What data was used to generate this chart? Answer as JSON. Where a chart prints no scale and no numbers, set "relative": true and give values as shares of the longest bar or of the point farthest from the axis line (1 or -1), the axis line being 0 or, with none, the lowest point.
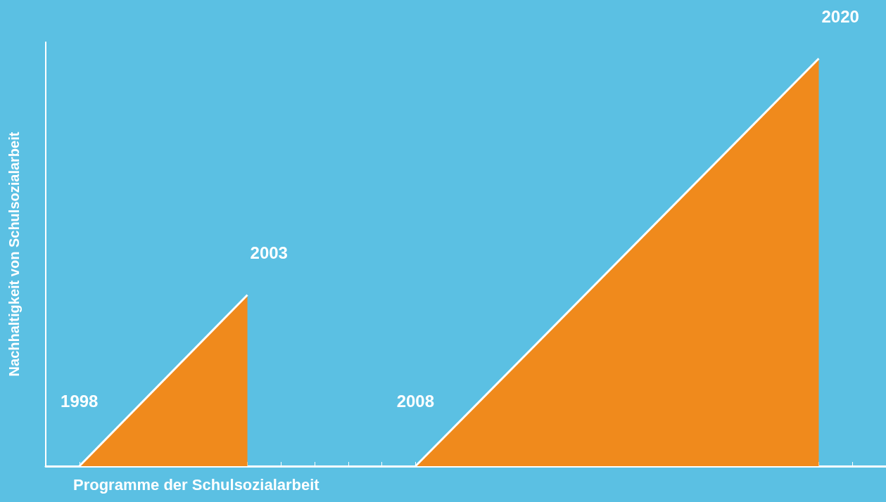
{
  "chart_data": {
    "type": "area",
    "relative": true,
    "xlabel": "Programme der Schulsozialarbeit",
    "ylabel": "Nachhaltigkeit von Schulsozialarbeit",
    "xlim": [
      1997,
      2022
    ],
    "xticks": [
      {
        "value": 1998,
        "label": "1998"
      },
      {
        "value": 1999,
        "label": null
      },
      {
        "value": 2000,
        "label": null
      },
      {
        "value": 2001,
        "label": null
      },
      {
        "value": 2002,
        "label": null
      },
      {
        "value": 2003,
        "label": null
      },
      {
        "value": 2004,
        "label": null
      },
      {
        "value": 2005,
        "label": null
      },
      {
        "value": 2006,
        "label": null
      },
      {
        "value": 2007,
        "label": null
      },
      {
        "value": 2008,
        "label": "2008"
      },
      {
        "value": 2009,
        "label": null
      },
      {
        "value": 2010,
        "label": null
      },
      {
        "value": 2011,
        "label": null
      },
      {
        "value": 2012,
        "label": null
      },
      {
        "value": 2013,
        "label": null
      },
      {
        "value": 2014,
        "label": null
      },
      {
        "value": 2015,
        "label": null
      },
      {
        "value": 2016,
        "label": null
      },
      {
        "value": 2017,
        "label": null
      },
      {
        "value": 2018,
        "label": null
      },
      {
        "value": 2019,
        "label": null
      },
      {
        "value": 2020,
        "label": null
      },
      {
        "value": 2021,
        "label": null
      }
    ],
    "tick_labels": "x",
    "grid": false,
    "series": [
      {
        "color": "#f08a1c",
        "x": [
          1998,
          2003
        ],
        "values": [
          0,
          0.42
        ]
      },
      {
        "color": "#f08a1c",
        "x": [
          2008,
          2020
        ],
        "values": [
          0,
          1
        ]
      }
    ],
    "annotations": [
      {
        "text": "2003",
        "x": 2003,
        "y": 0.42
      },
      {
        "text": "2020",
        "x": 2020,
        "y": 1
      }
    ]
  }
}
